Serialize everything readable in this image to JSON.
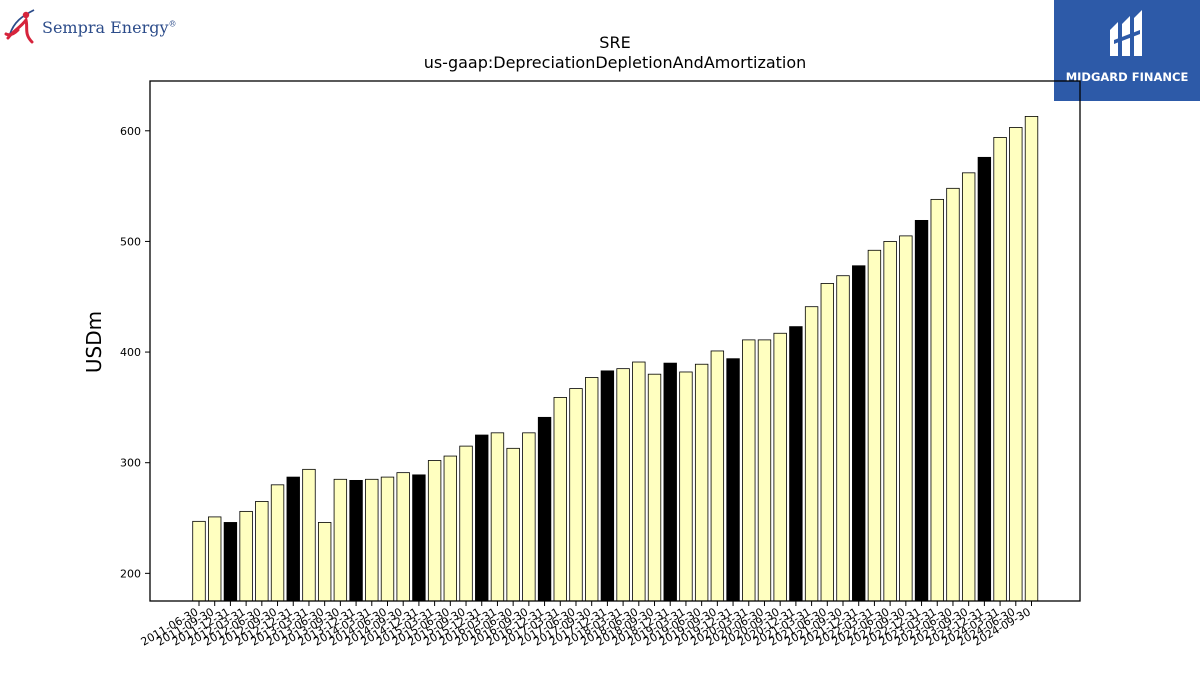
{
  "logos": {
    "left": {
      "name": "Sempra Energy",
      "reg": "®",
      "color": "#2c4c8a",
      "accent": "#d6243c"
    },
    "right": {
      "name": "MIDGARD FINANCE",
      "background": "#2d5aa8"
    }
  },
  "colors": {
    "bar_light": "#ffffc0",
    "bar_dark": "#000000",
    "edge": "#000000"
  },
  "chart_data": {
    "type": "bar",
    "title": "SRE",
    "subtitle": "us-gaap:DepreciationDepletionAndAmortization",
    "xlabel": "",
    "ylabel": "USDm",
    "ylim": [
      175,
      645
    ],
    "yticks": [
      200,
      300,
      400,
      500,
      600
    ],
    "grid": false,
    "categories": [
      "2011-06-30",
      "2011-09-30",
      "2011-12-31",
      "2012-03-31",
      "2012-06-30",
      "2012-09-30",
      "2012-12-31",
      "2013-03-31",
      "2013-06-30",
      "2013-09-30",
      "2013-12-31",
      "2014-03-31",
      "2014-06-30",
      "2014-09-30",
      "2014-12-31",
      "2015-03-31",
      "2015-06-30",
      "2015-09-30",
      "2015-12-31",
      "2016-03-31",
      "2016-06-30",
      "2016-09-30",
      "2016-12-31",
      "2017-03-31",
      "2017-06-30",
      "2017-09-30",
      "2017-12-31",
      "2018-03-31",
      "2018-06-30",
      "2018-09-30",
      "2018-12-31",
      "2019-03-31",
      "2019-06-30",
      "2019-09-30",
      "2019-12-31",
      "2020-03-31",
      "2020-06-30",
      "2020-09-30",
      "2020-12-31",
      "2021-03-31",
      "2021-06-30",
      "2021-09-30",
      "2021-12-31",
      "2022-03-31",
      "2022-06-30",
      "2022-09-30",
      "2022-12-31",
      "2023-03-31",
      "2023-06-30",
      "2023-09-30",
      "2023-12-31",
      "2024-03-31",
      "2024-06-30",
      "2024-09-30"
    ],
    "values": [
      247,
      251,
      246,
      256,
      265,
      280,
      287,
      294,
      246,
      285,
      284,
      285,
      287,
      291,
      289,
      302,
      306,
      315,
      325,
      327,
      313,
      327,
      341,
      359,
      367,
      377,
      383,
      385,
      391,
      380,
      390,
      382,
      389,
      401,
      394,
      411,
      411,
      417,
      423,
      441,
      462,
      469,
      478,
      492,
      500,
      505,
      519,
      538,
      548,
      562,
      576,
      594,
      603,
      613
    ],
    "highlight_dark": [
      false,
      false,
      true,
      false,
      false,
      false,
      true,
      false,
      false,
      false,
      true,
      false,
      false,
      false,
      true,
      false,
      false,
      false,
      true,
      false,
      false,
      false,
      true,
      false,
      false,
      false,
      true,
      false,
      false,
      false,
      true,
      false,
      false,
      false,
      true,
      false,
      false,
      false,
      true,
      false,
      false,
      false,
      true,
      false,
      false,
      false,
      true,
      false,
      false,
      false,
      true,
      false,
      false,
      false
    ]
  }
}
